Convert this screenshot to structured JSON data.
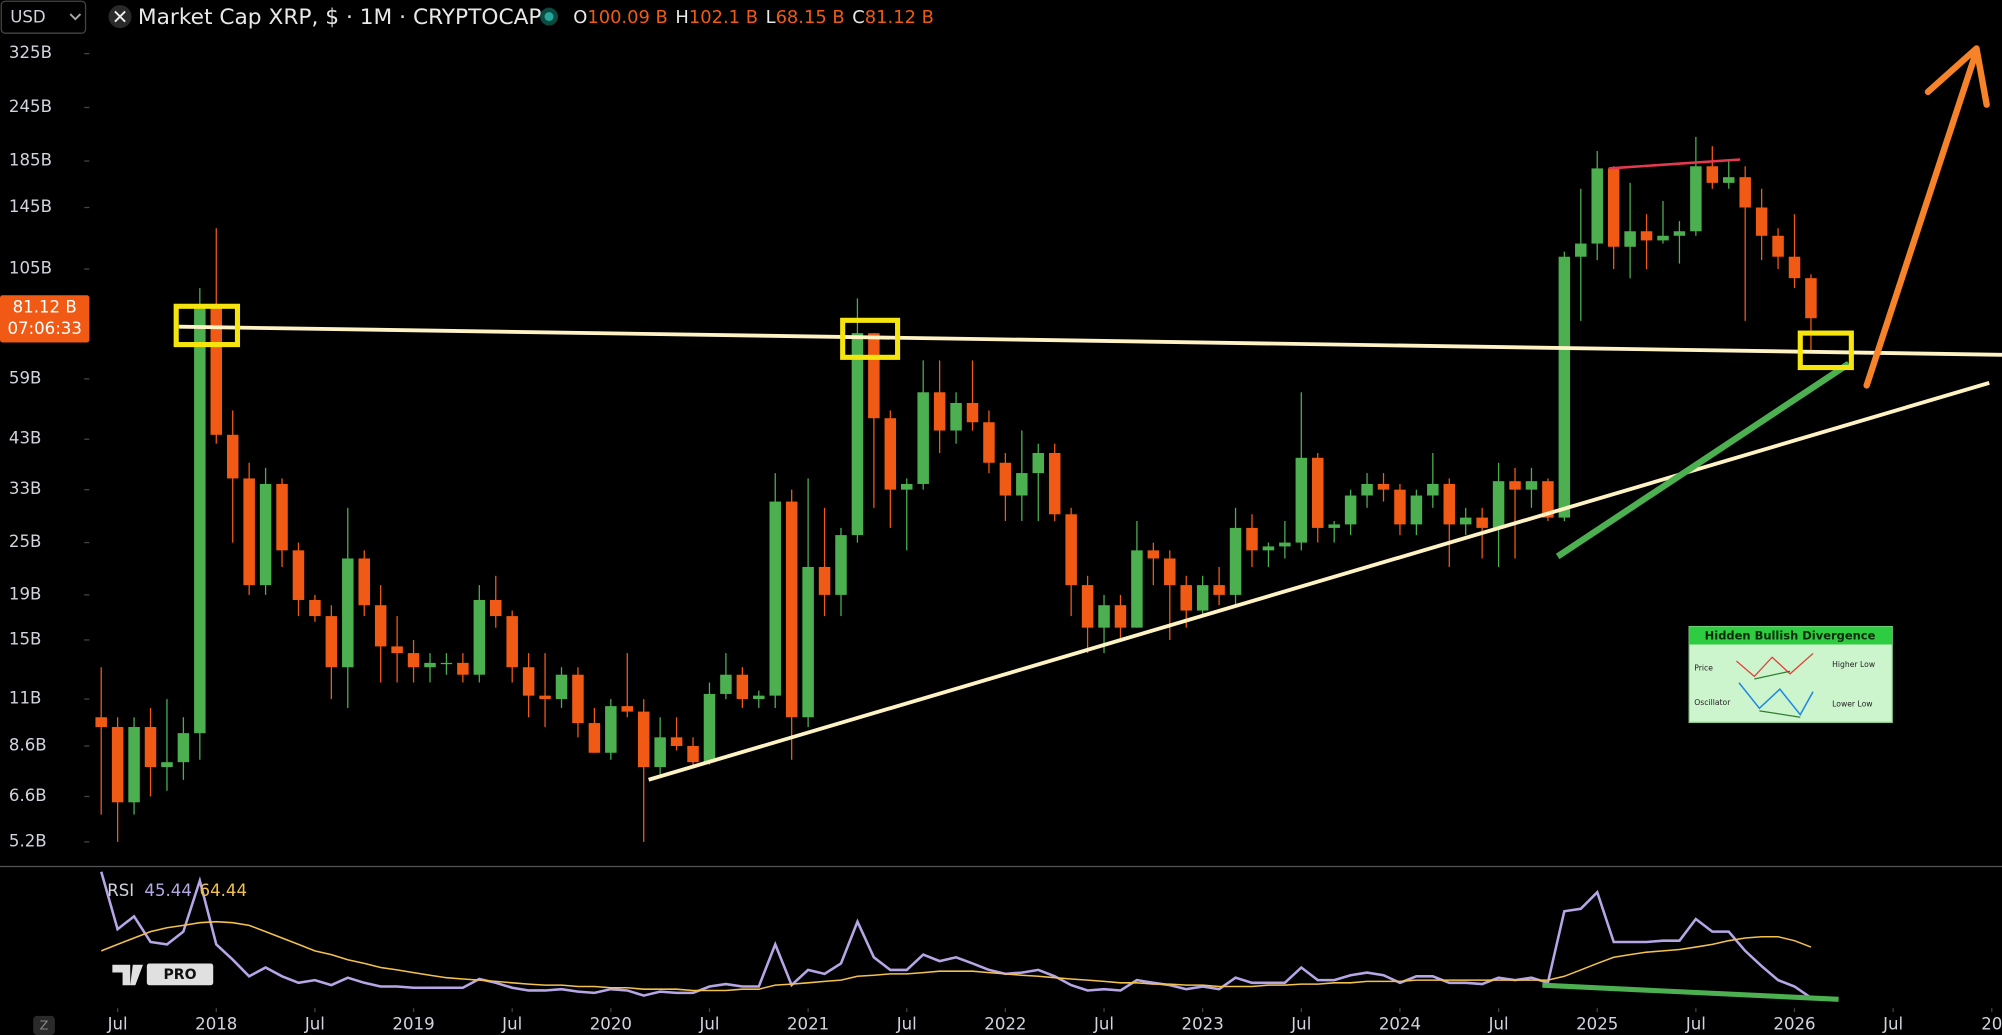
{
  "header": {
    "currency": "USD",
    "symbol": "Market Cap XRP, $ · 1M · CRYPTOCAP",
    "ohlc": [
      {
        "key": "O",
        "value": 100.09,
        "label": "100.09 B"
      },
      {
        "key": "H",
        "value": 102.1,
        "label": "102.1 B"
      },
      {
        "key": "L",
        "value": 68.15,
        "label": "68.15 B"
      },
      {
        "key": "C",
        "value": 81.12,
        "label": "81.12 B"
      }
    ]
  },
  "chart_data": [
    {
      "type": "candlestick",
      "x": [
        "2017-06",
        "2017-07",
        "2017-08",
        "2017-09",
        "2017-10",
        "2017-11",
        "2017-12",
        "2018-01",
        "2018-02",
        "2018-03",
        "2018-04",
        "2018-05",
        "2018-06",
        "2018-07",
        "2018-08",
        "2018-09",
        "2018-10",
        "2018-11",
        "2018-12",
        "2019-01",
        "2019-02",
        "2019-03",
        "2019-04",
        "2019-05",
        "2019-06",
        "2019-07",
        "2019-08",
        "2019-09",
        "2019-10",
        "2019-11",
        "2019-12",
        "2020-01",
        "2020-02",
        "2020-03",
        "2020-04",
        "2020-05",
        "2020-06",
        "2020-07",
        "2020-08",
        "2020-09",
        "2020-10",
        "2020-11",
        "2020-12",
        "2021-01",
        "2021-02",
        "2021-03",
        "2021-04",
        "2021-05",
        "2021-06",
        "2021-07",
        "2021-08",
        "2021-09",
        "2021-10",
        "2021-11",
        "2021-12",
        "2022-01",
        "2022-02",
        "2022-03",
        "2022-04",
        "2022-05",
        "2022-06",
        "2022-07",
        "2022-08",
        "2022-09",
        "2022-10",
        "2022-11",
        "2022-12",
        "2023-01",
        "2023-02",
        "2023-03",
        "2023-04",
        "2023-05",
        "2023-06",
        "2023-07",
        "2023-08",
        "2023-09",
        "2023-10",
        "2023-11",
        "2023-12",
        "2024-01",
        "2024-02",
        "2024-03",
        "2024-04",
        "2024-05",
        "2024-06",
        "2024-07",
        "2024-08",
        "2024-09",
        "2024-10",
        "2024-11",
        "2024-12",
        "2025-01",
        "2025-02",
        "2025-03",
        "2025-04",
        "2025-05",
        "2025-06",
        "2025-07",
        "2025-08",
        "2025-09",
        "2025-10",
        "2025-11",
        "2025-12",
        "2026-01",
        "2026-02"
      ],
      "open": [
        10,
        9.5,
        6.4,
        9.5,
        7.7,
        7.9,
        9.2,
        86,
        44,
        35,
        20,
        34,
        24,
        18.5,
        17,
        13,
        23,
        18,
        14.5,
        14,
        13,
        13.3,
        13.3,
        12.5,
        18.5,
        17,
        13,
        11.2,
        11,
        12.5,
        9.7,
        8.3,
        10.6,
        10.3,
        7.7,
        9,
        8.6,
        7.9,
        11.3,
        12.5,
        11,
        11.2,
        31,
        10,
        22,
        19,
        26,
        75,
        48,
        33,
        34,
        55,
        45,
        52,
        47,
        38,
        32,
        36,
        40,
        29,
        20,
        16,
        18,
        16,
        24,
        23,
        20,
        17.5,
        20,
        19,
        27,
        24,
        24.5,
        25,
        39,
        27,
        27.5,
        32,
        34,
        33,
        27.5,
        32,
        34,
        27.5,
        28.5,
        27,
        34.5,
        33,
        34.5,
        28.5,
        112,
        120,
        178,
        118,
        128,
        122,
        125,
        128,
        180,
        165,
        170,
        145,
        125,
        112,
        100.09
      ],
      "high": [
        13,
        10,
        10,
        10.5,
        11,
        10,
        95,
        130,
        50,
        38,
        37,
        35,
        25,
        19,
        18,
        30,
        24,
        20,
        17,
        15,
        14,
        14,
        14,
        20,
        21,
        17.5,
        14,
        14,
        13,
        13,
        10.5,
        11,
        14,
        11,
        10,
        10,
        9,
        12,
        14,
        13,
        11.5,
        36,
        33,
        35,
        30,
        27,
        90,
        75,
        50,
        35,
        65,
        65,
        55,
        65,
        50,
        40,
        45,
        42,
        42,
        30,
        21,
        19,
        19,
        28,
        25,
        24,
        21,
        21,
        22,
        30,
        29,
        25,
        28,
        55,
        40,
        28,
        33,
        36,
        36,
        34,
        33,
        40,
        35,
        30,
        30,
        38,
        37,
        37,
        35,
        115,
        160,
        195,
        180,
        165,
        140,
        150,
        135,
        210,
        200,
        185,
        180,
        160,
        130,
        140,
        102.1
      ],
      "low": [
        6,
        5.2,
        6,
        6.6,
        6.8,
        7.2,
        8,
        42,
        25,
        19,
        19,
        22,
        17,
        16.5,
        11,
        10.5,
        17,
        12,
        12,
        12,
        12,
        12.5,
        12,
        12,
        16,
        12,
        10,
        9.5,
        10.5,
        9,
        8.3,
        8,
        10,
        5.2,
        7.4,
        8.4,
        7.8,
        7.8,
        11,
        10.5,
        10.5,
        10.5,
        8,
        9.5,
        17,
        17,
        25,
        30,
        27,
        24,
        33,
        40,
        42,
        45,
        36,
        28,
        28,
        28,
        28,
        17,
        14,
        14,
        15,
        16,
        20,
        15,
        16,
        17,
        18,
        18,
        22,
        22,
        23,
        24,
        25,
        25,
        26,
        30,
        31,
        26,
        26,
        30,
        22,
        26,
        23,
        22,
        23,
        30,
        28,
        28,
        80,
        110,
        105,
        100,
        105,
        120,
        108,
        125,
        160,
        160,
        80,
        110,
        105,
        95,
        68.15
      ],
      "close": [
        9.5,
        6.4,
        9.5,
        7.7,
        7.9,
        9.2,
        86,
        44,
        35,
        20,
        34,
        24,
        18.5,
        17,
        13,
        23,
        18,
        14.5,
        14,
        13,
        13.3,
        13.3,
        12.5,
        18.5,
        17,
        13,
        11.2,
        11,
        12.5,
        9.7,
        8.3,
        10.6,
        10.3,
        7.7,
        9,
        8.6,
        7.9,
        11.3,
        12.5,
        11,
        11.2,
        31,
        10,
        22,
        19,
        26,
        75,
        48,
        33,
        34,
        55,
        45,
        52,
        47,
        38,
        32,
        36,
        40,
        29,
        20,
        16,
        18,
        16,
        24,
        23,
        20,
        17.5,
        20,
        19,
        27,
        24,
        24.5,
        25,
        39,
        27,
        27.5,
        32,
        34,
        33,
        27.5,
        32,
        34,
        27.5,
        28.5,
        27,
        34.5,
        33,
        34.5,
        28.5,
        112,
        120,
        178,
        118,
        128,
        122,
        125,
        128,
        180,
        165,
        170,
        145,
        125,
        112,
        100.09,
        81.12
      ],
      "up_color": "#4caf50",
      "down_color": "#f05a14",
      "log_scale": true,
      "grid": false,
      "ylim": [
        4.6,
        357
      ],
      "yticks": [
        {
          "value": 325,
          "label": "325B"
        },
        {
          "value": 245,
          "label": "245B"
        },
        {
          "value": 185,
          "label": "185B"
        },
        {
          "value": 145,
          "label": "145B"
        },
        {
          "value": 105,
          "label": "105B"
        },
        {
          "value": 59,
          "label": "59B"
        },
        {
          "value": 43,
          "label": "43B"
        },
        {
          "value": 33,
          "label": "33B"
        },
        {
          "value": 25,
          "label": "25B"
        },
        {
          "value": 19,
          "label": "19B"
        },
        {
          "value": 15,
          "label": "15B"
        },
        {
          "value": 11,
          "label": "11B"
        },
        {
          "value": 8.6,
          "label": "8.6B"
        },
        {
          "value": 6.6,
          "label": "6.6B"
        },
        {
          "value": 5.2,
          "label": "5.2B"
        }
      ],
      "xlim": [
        "2016-12",
        "2027-01"
      ],
      "xticks": [
        {
          "value": "2017-07",
          "label": "Jul"
        },
        {
          "value": "2018-01",
          "label": "2018"
        },
        {
          "value": "2018-07",
          "label": "Jul"
        },
        {
          "value": "2019-01",
          "label": "2019"
        },
        {
          "value": "2019-07",
          "label": "Jul"
        },
        {
          "value": "2020-01",
          "label": "2020"
        },
        {
          "value": "2020-07",
          "label": "Jul"
        },
        {
          "value": "2021-01",
          "label": "2021"
        },
        {
          "value": "2021-07",
          "label": "Jul"
        },
        {
          "value": "2022-01",
          "label": "2022"
        },
        {
          "value": "2022-07",
          "label": "Jul"
        },
        {
          "value": "2023-01",
          "label": "2023"
        },
        {
          "value": "2023-07",
          "label": "Jul"
        },
        {
          "value": "2024-01",
          "label": "2024"
        },
        {
          "value": "2024-07",
          "label": "Jul"
        },
        {
          "value": "2025-01",
          "label": "2025"
        },
        {
          "value": "2025-07",
          "label": "Jul"
        },
        {
          "value": "2026-01",
          "label": "2026"
        },
        {
          "value": "2026-07",
          "label": "Jul"
        },
        {
          "value": "2027-01",
          "label": "20"
        }
      ],
      "last_price": {
        "value": 81.12,
        "label": "81.12 B"
      },
      "countdown": "07:06:33"
    },
    {
      "type": "line",
      "title": "RSI",
      "x": [
        "2017-06",
        "2017-07",
        "2017-08",
        "2017-09",
        "2017-10",
        "2017-11",
        "2017-12",
        "2018-01",
        "2018-02",
        "2018-03",
        "2018-04",
        "2018-05",
        "2018-06",
        "2018-07",
        "2018-08",
        "2018-09",
        "2018-10",
        "2018-11",
        "2018-12",
        "2019-01",
        "2019-02",
        "2019-03",
        "2019-04",
        "2019-05",
        "2019-06",
        "2019-07",
        "2019-08",
        "2019-09",
        "2019-10",
        "2019-11",
        "2019-12",
        "2020-01",
        "2020-02",
        "2020-03",
        "2020-04",
        "2020-05",
        "2020-06",
        "2020-07",
        "2020-08",
        "2020-09",
        "2020-10",
        "2020-11",
        "2020-12",
        "2021-01",
        "2021-02",
        "2021-03",
        "2021-04",
        "2021-05",
        "2021-06",
        "2021-07",
        "2021-08",
        "2021-09",
        "2021-10",
        "2021-11",
        "2021-12",
        "2022-01",
        "2022-02",
        "2022-03",
        "2022-04",
        "2022-05",
        "2022-06",
        "2022-07",
        "2022-08",
        "2022-09",
        "2022-10",
        "2022-11",
        "2022-12",
        "2023-01",
        "2023-02",
        "2023-03",
        "2023-04",
        "2023-05",
        "2023-06",
        "2023-07",
        "2023-08",
        "2023-09",
        "2023-10",
        "2023-11",
        "2023-12",
        "2024-01",
        "2024-02",
        "2024-03",
        "2024-04",
        "2024-05",
        "2024-06",
        "2024-07",
        "2024-08",
        "2024-09",
        "2024-10",
        "2024-11",
        "2024-12",
        "2025-01",
        "2025-02",
        "2025-03",
        "2025-04",
        "2025-05",
        "2025-06",
        "2025-07",
        "2025-08",
        "2025-09",
        "2025-10",
        "2025-11",
        "2025-12",
        "2026-01",
        "2026-02"
      ],
      "series": [
        {
          "color": "#b7a6e6",
          "values": [
            92.5,
            71.1,
            75.9,
            66.3,
            65.4,
            70.2,
            89.2,
            65.4,
            59.7,
            53.5,
            56.8,
            53.5,
            51.1,
            52.1,
            50.2,
            53,
            51.1,
            49.7,
            49.7,
            49.2,
            49.2,
            49.2,
            49.2,
            52.5,
            51.1,
            49.2,
            48.2,
            48.2,
            48.7,
            47.8,
            47.3,
            48.7,
            48.2,
            46.3,
            47.8,
            47.3,
            47.3,
            49.7,
            50.6,
            49.7,
            49.7,
            65.4,
            50.2,
            55.9,
            54.4,
            58.3,
            73.9,
            60.6,
            55.9,
            55.9,
            61.6,
            59.2,
            60.6,
            58.3,
            55.9,
            54.4,
            54.9,
            55.9,
            53.5,
            50.2,
            48.2,
            48.7,
            48.2,
            52.1,
            51.1,
            50.2,
            48.7,
            49.7,
            48.7,
            53,
            51.1,
            51.1,
            51.1,
            56.8,
            52.1,
            52.1,
            53.9,
            54.9,
            53.9,
            51.1,
            53.5,
            53.5,
            51.1,
            51.1,
            50.6,
            53,
            52.1,
            53,
            51.1,
            77.8,
            78.7,
            84.9,
            66.3,
            66.3,
            66.3,
            66.8,
            66.8,
            74.9,
            70.2,
            70.2,
            63,
            57.3,
            52.1,
            49.7,
            45.44
          ]
        },
        {
          "color": "#f2c14e",
          "values": [
            63,
            65.4,
            67.8,
            70.2,
            71.6,
            72.5,
            73.5,
            73.9,
            73.5,
            72.5,
            70.2,
            67.8,
            65.4,
            63,
            61.6,
            59.7,
            58.3,
            56.8,
            55.9,
            54.9,
            53.9,
            53,
            52.5,
            52.1,
            51.6,
            51.1,
            50.6,
            50.2,
            50.2,
            49.7,
            49.7,
            49.2,
            49.2,
            48.7,
            48.7,
            48.7,
            48.2,
            48.2,
            48.2,
            48.7,
            48.7,
            50.2,
            50.6,
            51.1,
            51.6,
            52.1,
            53.5,
            53.9,
            54.4,
            54.4,
            54.9,
            55.4,
            55.4,
            55.4,
            54.9,
            54.4,
            53.9,
            53.5,
            53,
            52.5,
            52.1,
            51.6,
            51.1,
            51.1,
            50.6,
            50.6,
            50.2,
            50.2,
            49.7,
            49.7,
            49.7,
            50.2,
            50.2,
            50.6,
            50.6,
            51.1,
            51.1,
            51.6,
            51.6,
            51.6,
            52.1,
            52.1,
            52.1,
            52.1,
            52.1,
            52.1,
            52.1,
            52.1,
            52.1,
            53.5,
            55.9,
            58.3,
            60.6,
            61.6,
            62.5,
            63,
            63.5,
            64.4,
            65.4,
            66.8,
            67.8,
            68.3,
            68.3,
            66.8,
            64.44
          ]
        }
      ],
      "legend_values": [
        45.44,
        64.44
      ],
      "ylim": [
        41.6,
        94
      ],
      "xlim": [
        "2016-12",
        "2027-01"
      ]
    }
  ],
  "divergence_card": {
    "title": "Hidden Bullish Divergence",
    "rows": [
      [
        "Price",
        "Higher Low"
      ],
      [
        "Oscillator",
        "Lower Low"
      ]
    ]
  },
  "logo": "PRO",
  "timezone_button": "Z"
}
